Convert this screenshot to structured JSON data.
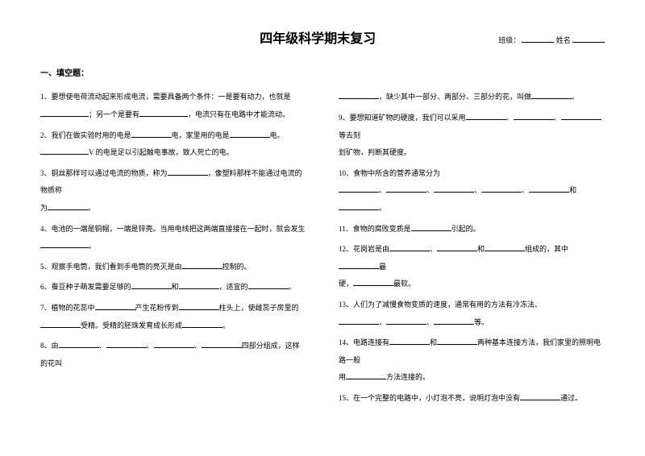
{
  "title": "四年级科学期末复习",
  "meta_class": "班级：",
  "meta_name": "姓名",
  "section1_title": "一、填空题：",
  "left": {
    "q1a": "1、要想使电荷流动起来形成电流，需要具备两个条件：一是要有动力，也就是",
    "q1b": "；另一个是要有",
    "q1c": "，电流只有在电路中才能流动。",
    "q2a": "2、我们在做实验时用的电是",
    "q2b": "电，家里用的电是",
    "q2c": "电。",
    "q2d": "V 的电是足以引起触电事故，致人死亡的电。",
    "q3a": "3、铜丝那样可以通过电流的物质，称为",
    "q3b": "，像塑料那样不能通过电流的物质称",
    "q3c": "为",
    "q3d": "。",
    "q4a": "4、电池的一端是铜帽，一端是锌壳。当用电线把这两端直接接在一起时，就会发生",
    "q4b": "。",
    "q5a": "5、观察手电筒，我们看到手电筒的亮灭是由",
    "q5b": "控制的。",
    "q6a": "6、蚕豆种子萌发需要足够的",
    "q6b": "和",
    "q6c": "，适宜的",
    "q6d": "。",
    "q7a": "7、植物的花蕊中",
    "q7b": "产生花粉传到",
    "q7c": "柱头上，使雌蕊子房里的",
    "q7d": "受精。受精的胚珠发育成长形成",
    "q7e": "。",
    "q8a": "8、由",
    "q8b": "、",
    "q8c": "四部分组成，这样的花叫"
  },
  "right": {
    "r0a": "，缺少其中一部分、两部分、三部分的花，叫做",
    "r0b": "。",
    "q9a": "9、要想知道矿物的硬度，我们可以采用",
    "q9b": "、",
    "q9c": "等去刻",
    "q9d": "划矿物，判断其硬度。",
    "q10a": "10、食物中所含的营养通常分为",
    "q10b": "、",
    "q10c": "和",
    "q10d": "。",
    "q11a": "11、食物的腐败变质是",
    "q11b": "引起的。",
    "q12a": "12、花岗岩是由",
    "q12b": "、",
    "q12c": "和",
    "q12d": "组成的，其中",
    "q12e": "最",
    "q12f": "硬，",
    "q12g": "最软。",
    "q13a": "13、人们为了减慢食物变质的速度，通常有用的方法有冷冻法、",
    "q13b": "、",
    "q13c": "等。",
    "q14a": "14、电路连接有",
    "q14b": "和",
    "q14c": "两种基本连接方法，我们家里的照明电路一般",
    "q14d": "用",
    "q14e": "方法连接的。",
    "q15a": "15、在一个完整的电路中，小灯泡不亮，说明灯泡中没有",
    "q15b": "通过。"
  }
}
